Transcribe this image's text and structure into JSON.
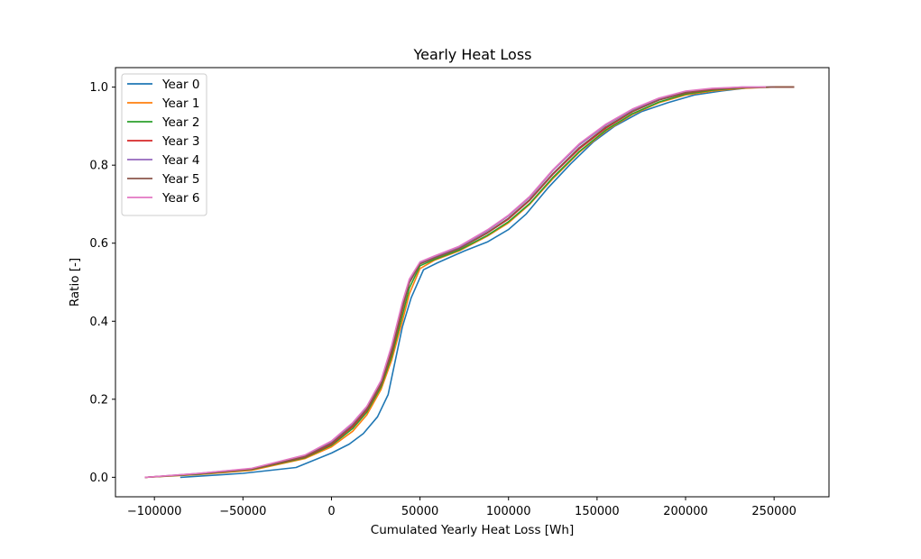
{
  "chart_data": {
    "type": "line",
    "title": "Yearly Heat Loss",
    "xlabel": "Cumulated Yearly Heat Loss [Wh]",
    "ylabel": "Ratio [-]",
    "xlim": [
      -122000,
      281000
    ],
    "ylim": [
      -0.05,
      1.05
    ],
    "xticks": [
      -100000,
      -50000,
      0,
      50000,
      100000,
      150000,
      200000,
      250000
    ],
    "xtick_labels": [
      "−100000",
      "−50000",
      "0",
      "50000",
      "100000",
      "150000",
      "200000",
      "250000"
    ],
    "yticks": [
      0.0,
      0.2,
      0.4,
      0.6,
      0.8,
      1.0
    ],
    "ytick_labels": [
      "0.0",
      "0.2",
      "0.4",
      "0.6",
      "0.8",
      "1.0"
    ],
    "grid": false,
    "legend_position": "upper-left",
    "series": [
      {
        "name": "Year 0",
        "color": "#1f77b4",
        "x": [
          -85000,
          -50000,
          -20000,
          0,
          10000,
          18000,
          26000,
          32000,
          40000,
          45000,
          52000,
          60000,
          75000,
          88000,
          100000,
          110000,
          122000,
          135000,
          148000,
          160000,
          175000,
          190000,
          205000,
          220000,
          235000,
          250000,
          261000
        ],
        "y": [
          0.0,
          0.01,
          0.025,
          0.062,
          0.085,
          0.112,
          0.155,
          0.212,
          0.385,
          0.46,
          0.532,
          0.55,
          0.58,
          0.603,
          0.635,
          0.675,
          0.74,
          0.803,
          0.86,
          0.9,
          0.937,
          0.96,
          0.98,
          0.99,
          0.998,
          1.0,
          1.0
        ]
      },
      {
        "name": "Year 1",
        "color": "#ff7f0e",
        "x": [
          -105000,
          -75000,
          -45000,
          -15000,
          0,
          12000,
          20000,
          28000,
          34000,
          40000,
          44000,
          50000,
          58000,
          72000,
          88000,
          100000,
          112000,
          125000,
          140000,
          155000,
          170000,
          185000,
          200000,
          215000,
          232000,
          250000,
          261000
        ],
        "y": [
          0.0,
          0.007,
          0.018,
          0.048,
          0.078,
          0.118,
          0.16,
          0.225,
          0.3,
          0.4,
          0.47,
          0.535,
          0.556,
          0.58,
          0.618,
          0.652,
          0.7,
          0.765,
          0.833,
          0.888,
          0.93,
          0.96,
          0.98,
          0.99,
          0.997,
          1.0,
          1.0
        ]
      },
      {
        "name": "Year 2",
        "color": "#2ca02c",
        "x": [
          -105000,
          -75000,
          -45000,
          -15000,
          0,
          12000,
          20000,
          28000,
          34000,
          40000,
          44000,
          50000,
          58000,
          72000,
          88000,
          100000,
          112000,
          125000,
          140000,
          155000,
          170000,
          185000,
          200000,
          215000,
          232000,
          250000,
          261000
        ],
        "y": [
          0.0,
          0.008,
          0.02,
          0.05,
          0.082,
          0.125,
          0.167,
          0.232,
          0.31,
          0.415,
          0.485,
          0.542,
          0.558,
          0.582,
          0.62,
          0.655,
          0.702,
          0.768,
          0.835,
          0.89,
          0.932,
          0.962,
          0.982,
          0.992,
          0.998,
          1.0,
          1.0
        ]
      },
      {
        "name": "Year 3",
        "color": "#d62728",
        "x": [
          -105000,
          -75000,
          -45000,
          -15000,
          0,
          12000,
          20000,
          28000,
          34000,
          40000,
          44000,
          50000,
          58000,
          72000,
          88000,
          100000,
          112000,
          125000,
          140000,
          155000,
          170000,
          185000,
          200000,
          215000,
          232000,
          250000,
          261000
        ],
        "y": [
          0.0,
          0.009,
          0.021,
          0.052,
          0.085,
          0.13,
          0.172,
          0.238,
          0.32,
          0.43,
          0.5,
          0.548,
          0.562,
          0.586,
          0.626,
          0.662,
          0.71,
          0.776,
          0.842,
          0.895,
          0.937,
          0.967,
          0.985,
          0.994,
          0.999,
          1.0,
          1.0
        ]
      },
      {
        "name": "Year 4",
        "color": "#9467bd",
        "x": [
          -105000,
          -75000,
          -45000,
          -15000,
          0,
          12000,
          20000,
          28000,
          34000,
          40000,
          44000,
          50000,
          58000,
          72000,
          88000,
          100000,
          112000,
          125000,
          140000,
          155000,
          170000,
          185000,
          200000,
          215000,
          232000,
          250000
        ],
        "y": [
          0.0,
          0.01,
          0.022,
          0.055,
          0.09,
          0.138,
          0.18,
          0.245,
          0.335,
          0.445,
          0.505,
          0.55,
          0.565,
          0.59,
          0.632,
          0.67,
          0.718,
          0.786,
          0.852,
          0.903,
          0.942,
          0.97,
          0.988,
          0.996,
          1.0,
          1.0
        ]
      },
      {
        "name": "Year 5",
        "color": "#8c564b",
        "x": [
          -105000,
          -75000,
          -45000,
          -15000,
          0,
          12000,
          20000,
          28000,
          34000,
          40000,
          44000,
          50000,
          58000,
          72000,
          88000,
          100000,
          112000,
          125000,
          140000,
          155000,
          170000,
          185000,
          200000,
          215000,
          232000,
          250000,
          261000
        ],
        "y": [
          0.0,
          0.009,
          0.021,
          0.053,
          0.087,
          0.133,
          0.175,
          0.24,
          0.325,
          0.435,
          0.498,
          0.547,
          0.562,
          0.586,
          0.627,
          0.664,
          0.712,
          0.778,
          0.845,
          0.898,
          0.938,
          0.967,
          0.986,
          0.995,
          0.999,
          1.0,
          1.0
        ]
      },
      {
        "name": "Year 6",
        "color": "#e377c2",
        "x": [
          -105000,
          -75000,
          -45000,
          -15000,
          0,
          12000,
          20000,
          28000,
          34000,
          40000,
          44000,
          50000,
          58000,
          72000,
          88000,
          100000,
          112000,
          125000,
          140000,
          155000,
          170000,
          185000,
          200000,
          215000,
          232000,
          245000
        ],
        "y": [
          0.0,
          0.01,
          0.023,
          0.057,
          0.093,
          0.14,
          0.182,
          0.248,
          0.338,
          0.448,
          0.508,
          0.552,
          0.567,
          0.592,
          0.634,
          0.672,
          0.72,
          0.788,
          0.855,
          0.905,
          0.944,
          0.972,
          0.99,
          0.997,
          1.0,
          1.0
        ]
      }
    ]
  }
}
